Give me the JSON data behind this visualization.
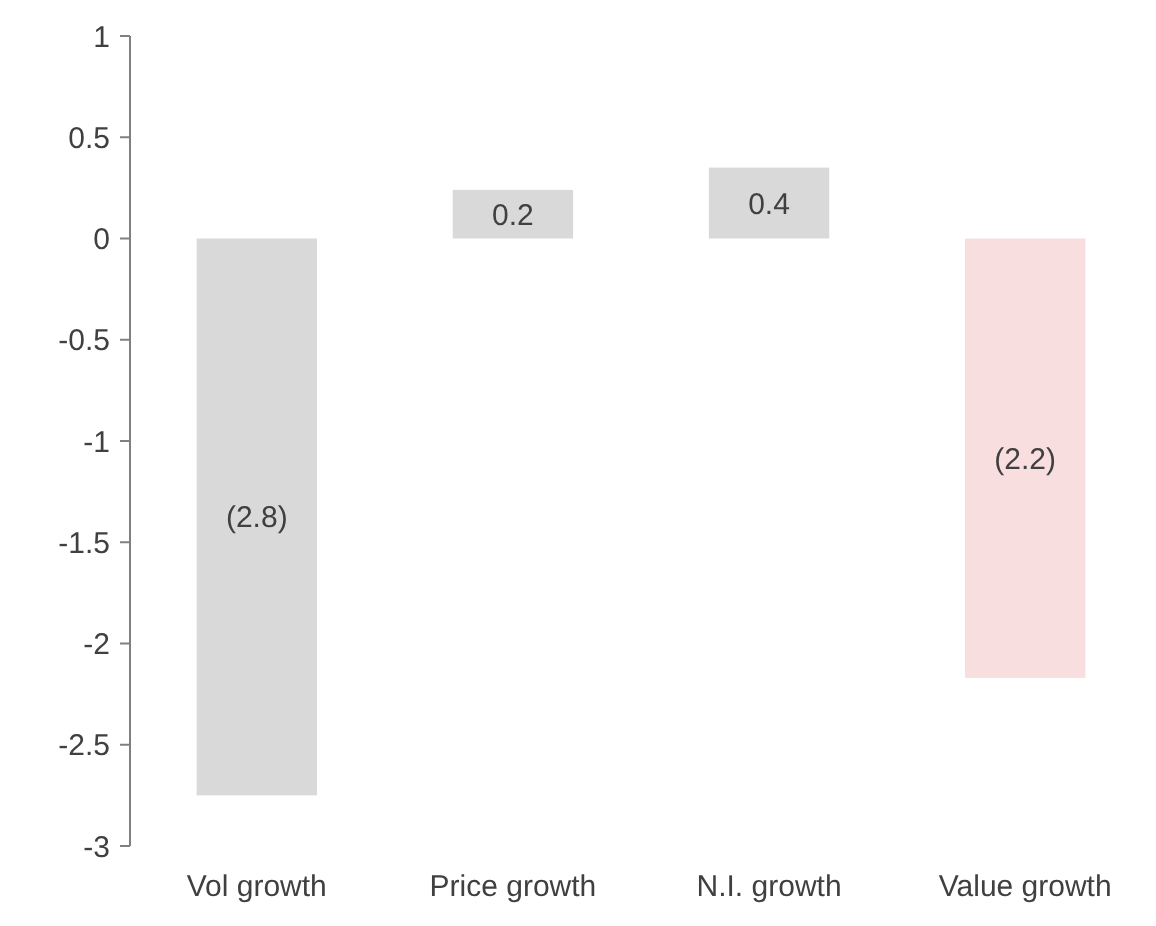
{
  "chart_data": {
    "type": "bar",
    "categories": [
      "Vol growth",
      "Price growth",
      "N.I. growth",
      "Value growth"
    ],
    "values": [
      -2.75,
      0.24,
      0.35,
      -2.17
    ],
    "colors": [
      "#d9d9d9",
      "#d9d9d9",
      "#d9d9d9",
      "#f8dede"
    ],
    "value_labels": [
      "(2.8)",
      "0.2",
      "0.4",
      "(2.2)"
    ],
    "ylim": [
      -3,
      1
    ],
    "yticks": [
      -3,
      -2.5,
      -2,
      -1.5,
      -1,
      -0.5,
      0,
      0.5,
      1
    ]
  }
}
